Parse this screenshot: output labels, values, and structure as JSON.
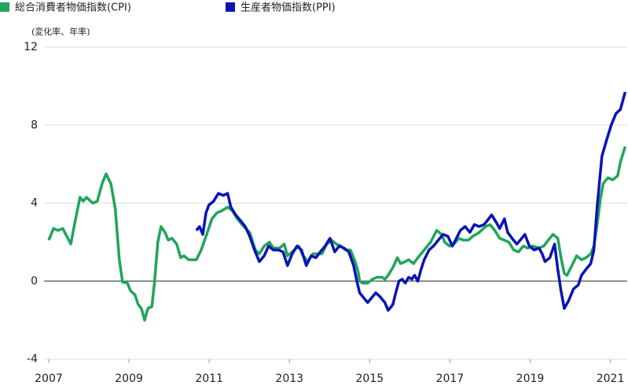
{
  "chart_data": {
    "type": "line",
    "y_label": "(変化率、年率)",
    "xlim": [
      2007,
      2021.42
    ],
    "xticks": [
      2007,
      2009,
      2011,
      2013,
      2015,
      2017,
      2019,
      2021
    ],
    "ylim": [
      -4,
      12
    ],
    "yticks": [
      -4,
      0,
      4,
      8,
      12
    ],
    "grid": true,
    "series": [
      {
        "name": "総合消費者物価指数(CPI)",
        "color": "#20a55a",
        "x": [
          2007.0,
          2007.12,
          2007.23,
          2007.35,
          2007.55,
          2007.65,
          2007.78,
          2007.86,
          2007.94,
          2008.1,
          2008.21,
          2008.33,
          2008.43,
          2008.55,
          2008.66,
          2008.76,
          2008.84,
          2008.96,
          2009.04,
          2009.15,
          2009.23,
          2009.31,
          2009.39,
          2009.47,
          2009.57,
          2009.64,
          2009.72,
          2009.8,
          2009.9,
          2009.98,
          2010.07,
          2010.19,
          2010.29,
          2010.37,
          2010.49,
          2010.6,
          2010.68,
          2010.8,
          2010.92,
          2011.07,
          2011.19,
          2011.31,
          2011.46,
          2011.58,
          2011.7,
          2011.86,
          2012.01,
          2012.15,
          2012.25,
          2012.37,
          2012.5,
          2012.6,
          2012.76,
          2012.87,
          2012.95,
          2013.07,
          2013.23,
          2013.34,
          2013.46,
          2013.58,
          2013.7,
          2013.81,
          2013.93,
          2014.05,
          2014.17,
          2014.28,
          2014.4,
          2014.52,
          2014.64,
          2014.71,
          2014.75,
          2014.83,
          2014.95,
          2015.07,
          2015.18,
          2015.3,
          2015.38,
          2015.46,
          2015.58,
          2015.69,
          2015.77,
          2015.89,
          2015.97,
          2016.09,
          2016.2,
          2016.36,
          2016.52,
          2016.67,
          2016.79,
          2016.87,
          2016.99,
          2017.1,
          2017.22,
          2017.34,
          2017.46,
          2017.57,
          2017.73,
          2017.89,
          2018.0,
          2018.12,
          2018.24,
          2018.36,
          2018.47,
          2018.59,
          2018.71,
          2018.83,
          2018.94,
          2019.06,
          2019.22,
          2019.34,
          2019.45,
          2019.57,
          2019.69,
          2019.77,
          2019.85,
          2019.92,
          2020.04,
          2020.16,
          2020.28,
          2020.39,
          2020.51,
          2020.59,
          2020.67,
          2020.75,
          2020.82,
          2020.94,
          2021.06,
          2021.18,
          2021.25,
          2021.37
        ],
        "values": [
          2.1,
          2.7,
          2.6,
          2.7,
          1.9,
          3.0,
          4.3,
          4.1,
          4.3,
          4.0,
          4.1,
          5.0,
          5.5,
          5.0,
          3.7,
          1.1,
          -0.05,
          -0.1,
          -0.5,
          -0.7,
          -1.2,
          -1.4,
          -2.0,
          -1.4,
          -1.3,
          0.0,
          2.0,
          2.8,
          2.5,
          2.1,
          2.2,
          1.9,
          1.2,
          1.3,
          1.1,
          1.1,
          1.1,
          1.6,
          2.3,
          3.2,
          3.5,
          3.6,
          3.8,
          3.6,
          3.2,
          2.8,
          2.5,
          1.6,
          1.4,
          1.8,
          2.0,
          1.7,
          1.7,
          1.9,
          1.3,
          1.5,
          1.8,
          1.3,
          1.0,
          1.4,
          1.4,
          1.4,
          1.9,
          2.1,
          1.9,
          1.8,
          1.6,
          1.6,
          1.0,
          0.5,
          0.0,
          -0.1,
          -0.1,
          0.1,
          0.2,
          0.2,
          0.1,
          0.3,
          0.7,
          1.2,
          0.9,
          1.0,
          1.1,
          0.9,
          1.2,
          1.6,
          2.0,
          2.6,
          2.4,
          2.0,
          1.8,
          1.9,
          2.2,
          2.1,
          2.1,
          2.3,
          2.5,
          2.8,
          2.9,
          2.6,
          2.2,
          2.1,
          2.0,
          1.6,
          1.5,
          1.8,
          1.7,
          1.8,
          1.7,
          1.8,
          2.1,
          2.4,
          2.2,
          1.2,
          0.4,
          0.3,
          0.8,
          1.3,
          1.1,
          1.2,
          1.4,
          1.8,
          2.9,
          4.2,
          5.0,
          5.3,
          5.2,
          5.4,
          6.1,
          6.9
        ]
      },
      {
        "name": "生産者物価指数(PPI)",
        "color": "#0a14b4",
        "x": [
          2010.68,
          2010.76,
          2010.84,
          2010.92,
          2010.99,
          2011.11,
          2011.23,
          2011.35,
          2011.46,
          2011.54,
          2011.66,
          2011.78,
          2011.9,
          2012.01,
          2012.13,
          2012.25,
          2012.37,
          2012.48,
          2012.6,
          2012.72,
          2012.84,
          2012.95,
          2013.07,
          2013.19,
          2013.3,
          2013.42,
          2013.54,
          2013.66,
          2013.77,
          2013.89,
          2014.01,
          2014.13,
          2014.24,
          2014.36,
          2014.48,
          2014.6,
          2014.68,
          2014.75,
          2014.87,
          2014.95,
          2015.07,
          2015.15,
          2015.26,
          2015.38,
          2015.46,
          2015.58,
          2015.65,
          2015.73,
          2015.81,
          2015.89,
          2015.97,
          2016.05,
          2016.12,
          2016.2,
          2016.28,
          2016.36,
          2016.48,
          2016.59,
          2016.71,
          2016.83,
          2016.95,
          2017.06,
          2017.14,
          2017.26,
          2017.38,
          2017.5,
          2017.61,
          2017.73,
          2017.85,
          2017.93,
          2018.04,
          2018.16,
          2018.24,
          2018.36,
          2018.44,
          2018.55,
          2018.67,
          2018.79,
          2018.87,
          2018.98,
          2019.1,
          2019.22,
          2019.3,
          2019.37,
          2019.49,
          2019.61,
          2019.69,
          2019.77,
          2019.85,
          2019.96,
          2020.08,
          2020.2,
          2020.28,
          2020.39,
          2020.51,
          2020.59,
          2020.67,
          2020.79,
          2020.9,
          2021.02,
          2021.14,
          2021.25,
          2021.37
        ],
        "values": [
          2.6,
          2.8,
          2.4,
          3.5,
          3.9,
          4.1,
          4.5,
          4.4,
          4.5,
          3.8,
          3.4,
          3.1,
          2.8,
          2.3,
          1.6,
          1.0,
          1.3,
          1.8,
          1.6,
          1.6,
          1.5,
          0.8,
          1.4,
          1.8,
          1.6,
          0.8,
          1.3,
          1.2,
          1.5,
          1.8,
          2.2,
          1.5,
          1.8,
          1.7,
          1.5,
          0.8,
          0.0,
          -0.6,
          -0.9,
          -1.1,
          -0.8,
          -0.6,
          -0.8,
          -1.1,
          -1.5,
          -1.2,
          -0.6,
          0.0,
          0.1,
          -0.1,
          0.2,
          0.1,
          0.3,
          0.0,
          0.6,
          1.1,
          1.6,
          1.8,
          2.1,
          2.4,
          2.3,
          1.8,
          2.1,
          2.6,
          2.8,
          2.5,
          2.9,
          2.8,
          2.9,
          3.1,
          3.4,
          3.0,
          2.7,
          3.2,
          2.5,
          2.2,
          1.9,
          2.2,
          2.4,
          1.8,
          1.6,
          1.7,
          1.4,
          1.0,
          1.2,
          1.9,
          0.6,
          -0.5,
          -1.4,
          -1.0,
          -0.4,
          -0.2,
          0.3,
          0.6,
          0.9,
          1.6,
          3.8,
          6.4,
          7.2,
          8.0,
          8.6,
          8.8,
          9.7
        ]
      }
    ]
  }
}
